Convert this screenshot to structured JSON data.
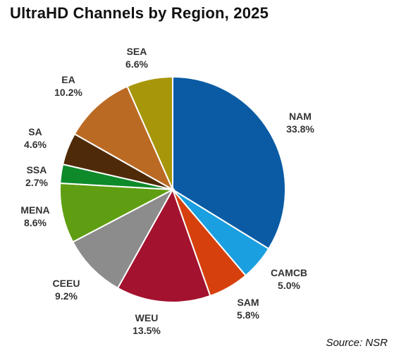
{
  "chart_data": {
    "type": "pie",
    "title": "UltraHD Channels by Region, 2025",
    "source": "Source: NSR",
    "slices": [
      {
        "label": "NAM",
        "value": 33.8,
        "value_label": "33.8%",
        "color": "#0a5ba4"
      },
      {
        "label": "CAMCB",
        "value": 5.0,
        "value_label": "5.0%",
        "color": "#1a9fe0"
      },
      {
        "label": "SAM",
        "value": 5.8,
        "value_label": "5.8%",
        "color": "#d6400d"
      },
      {
        "label": "WEU",
        "value": 13.5,
        "value_label": "13.5%",
        "color": "#a3122e"
      },
      {
        "label": "CEEU",
        "value": 9.2,
        "value_label": "9.2%",
        "color": "#8c8c8c"
      },
      {
        "label": "MENA",
        "value": 8.6,
        "value_label": "8.6%",
        "color": "#5f9e12"
      },
      {
        "label": "SSA",
        "value": 2.7,
        "value_label": "2.7%",
        "color": "#0f8a2a"
      },
      {
        "label": "SA",
        "value": 4.6,
        "value_label": "4.6%",
        "color": "#4f2a08"
      },
      {
        "label": "EA",
        "value": 10.2,
        "value_label": "10.2%",
        "color": "#bb6a24"
      },
      {
        "label": "SEA",
        "value": 6.6,
        "value_label": "6.6%",
        "color": "#a8960a"
      }
    ]
  }
}
